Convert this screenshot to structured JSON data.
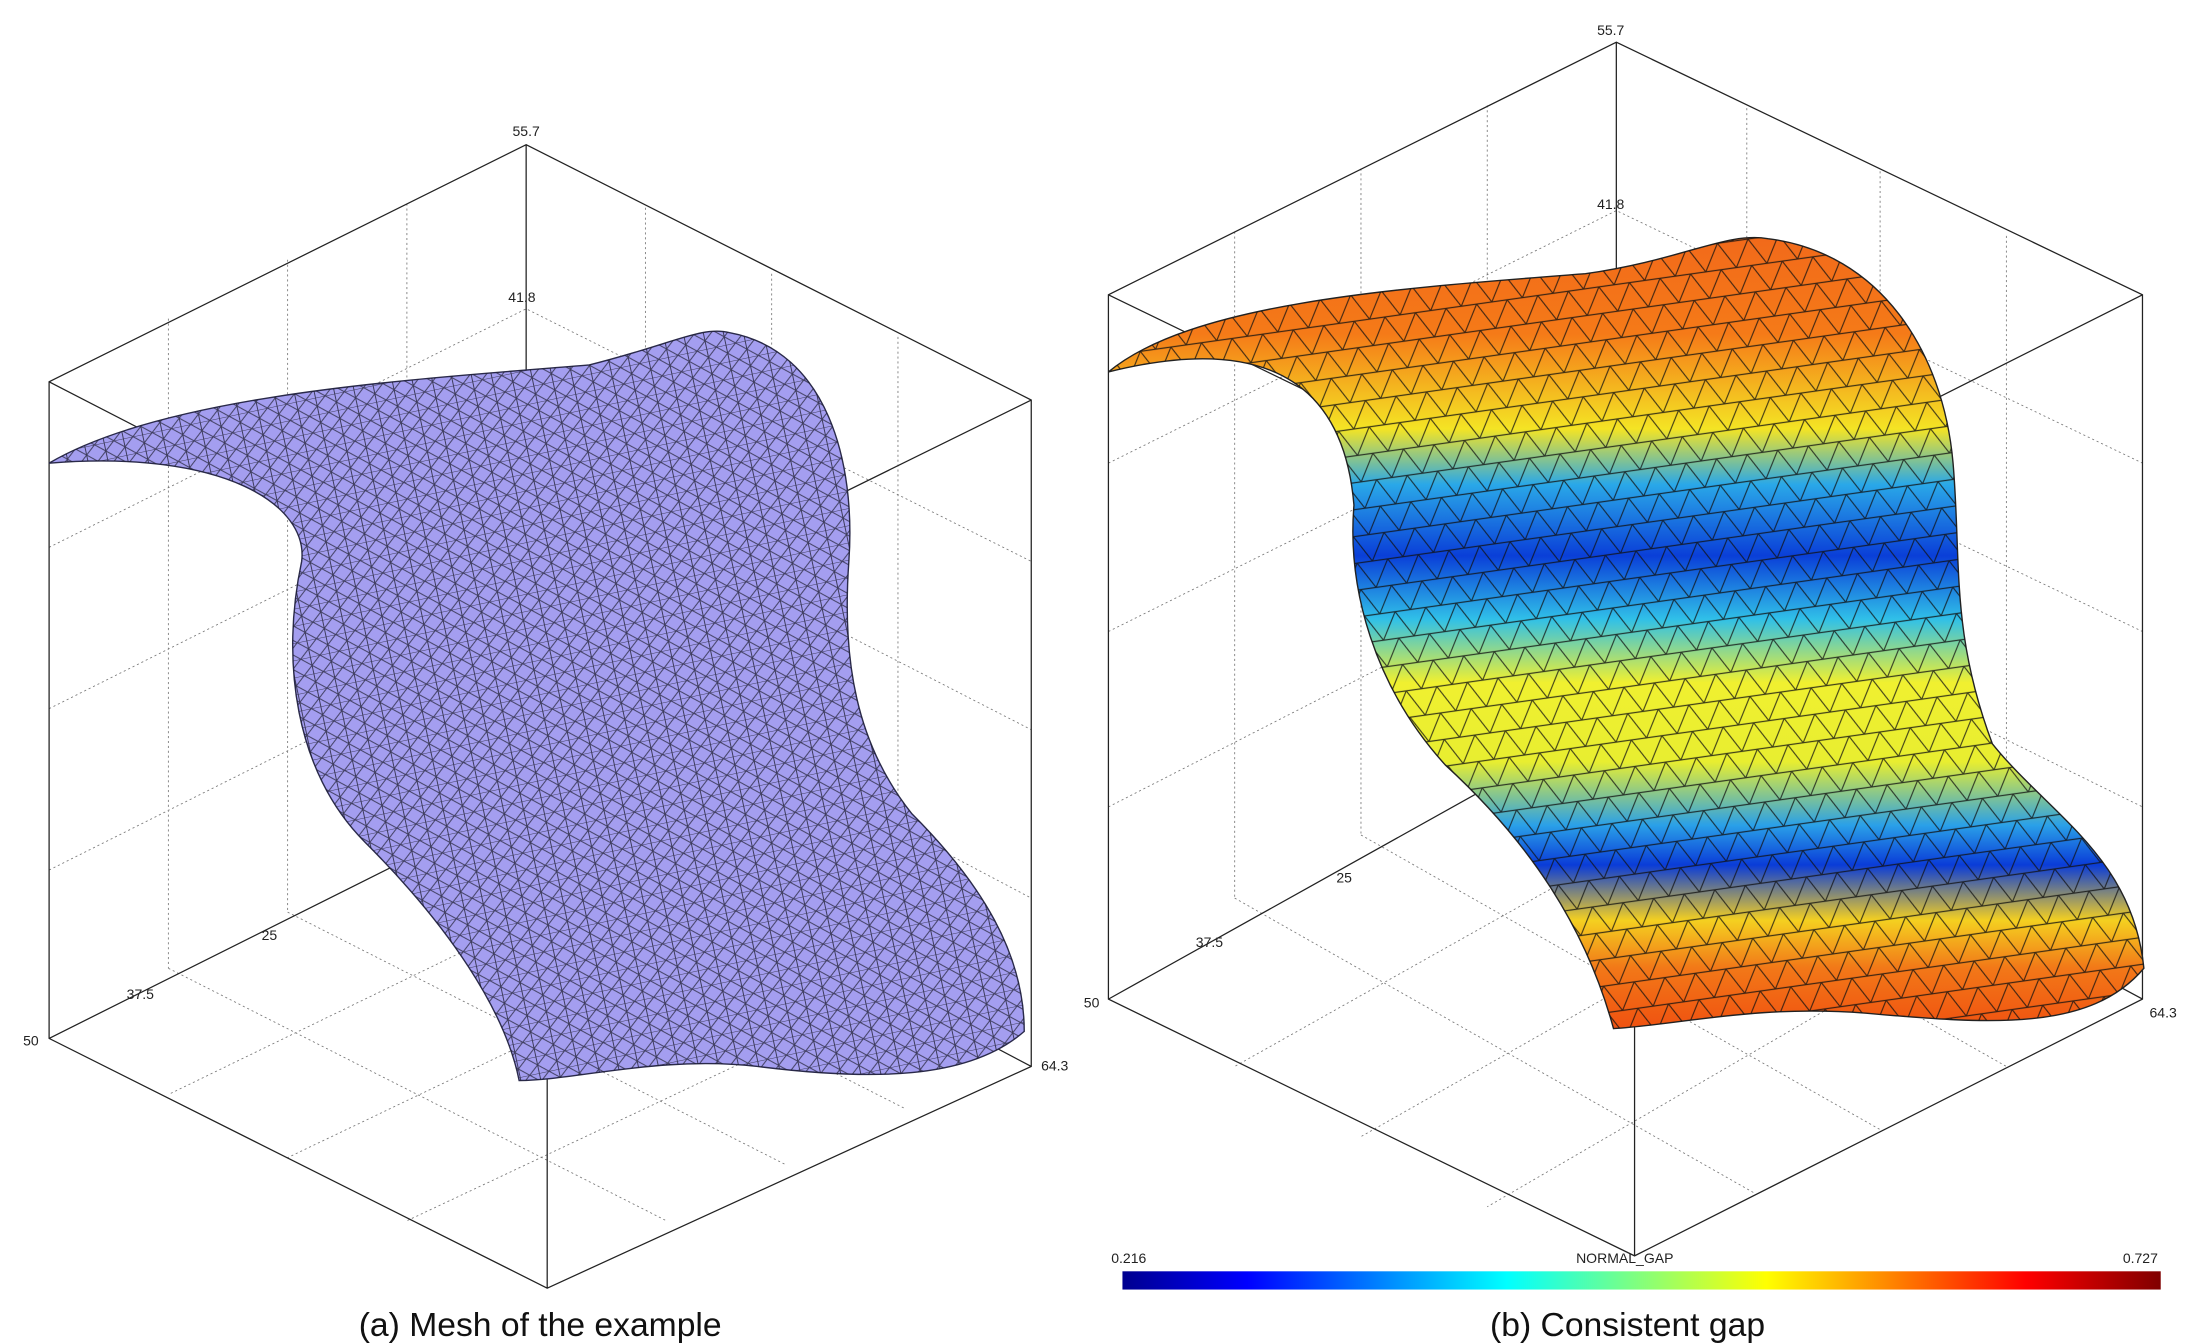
{
  "panels": [
    {
      "caption": "(a) Mesh of the example",
      "axis_labels": {
        "z_top": 55.7,
        "z_mid": 41.8,
        "x_a": 25,
        "x_b": 37.5,
        "x_c": 50,
        "y_end": 64.3
      }
    },
    {
      "caption": "(b) Consistent gap",
      "axis_labels": {
        "z_top": 55.7,
        "z_mid": 41.8,
        "x_a": 25,
        "x_b": 37.5,
        "x_c": 50,
        "y_end": 64.3
      },
      "colorbar": {
        "min": 0.216,
        "title": "NORMAL_GAP",
        "max": 0.727
      }
    }
  ]
}
